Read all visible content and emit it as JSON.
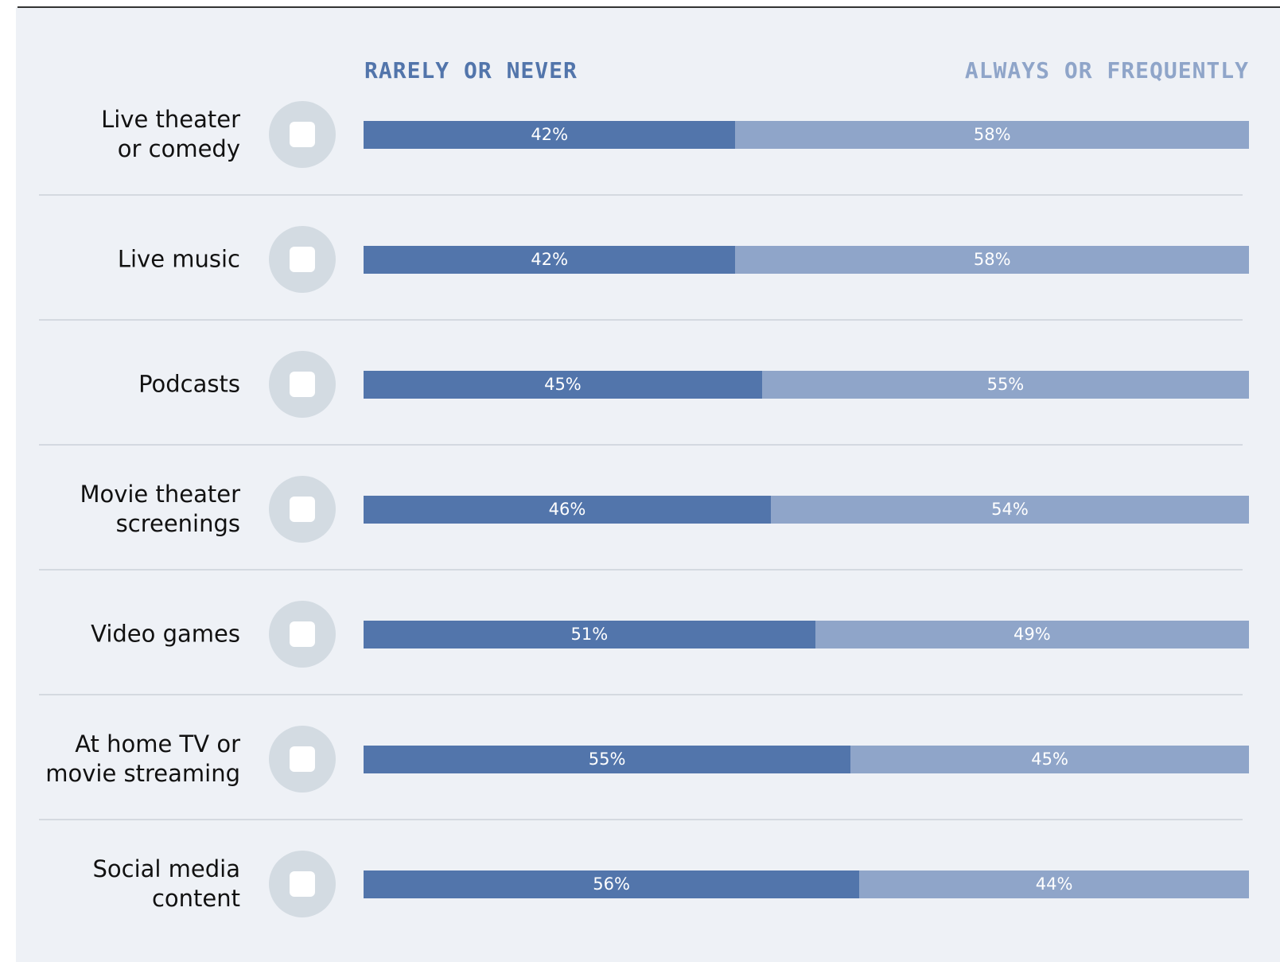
{
  "chart_data": {
    "type": "stacked_barh",
    "categories": [
      "Live theater\nor comedy",
      "Live music",
      "Podcasts",
      "Movie theater\nscreenings",
      "Video games",
      "At home TV or\nmovie streaming",
      "Social media\ncontent"
    ],
    "series": [
      {
        "name": "RARELY OR NEVER",
        "color": "#5275ab",
        "values": [
          42,
          42,
          45,
          46,
          51,
          55,
          56
        ],
        "value_labels": [
          "42%",
          "42%",
          "45%",
          "46%",
          "51%",
          "55%",
          "56%"
        ]
      },
      {
        "name": "ALWAYS OR FREQUENTLY",
        "color": "#8fa5c9",
        "values": [
          58,
          58,
          55,
          54,
          49,
          45,
          44
        ],
        "value_labels": [
          "58%",
          "58%",
          "55%",
          "54%",
          "49%",
          "45%",
          "44%"
        ]
      }
    ],
    "xlim": [
      0,
      100
    ]
  }
}
